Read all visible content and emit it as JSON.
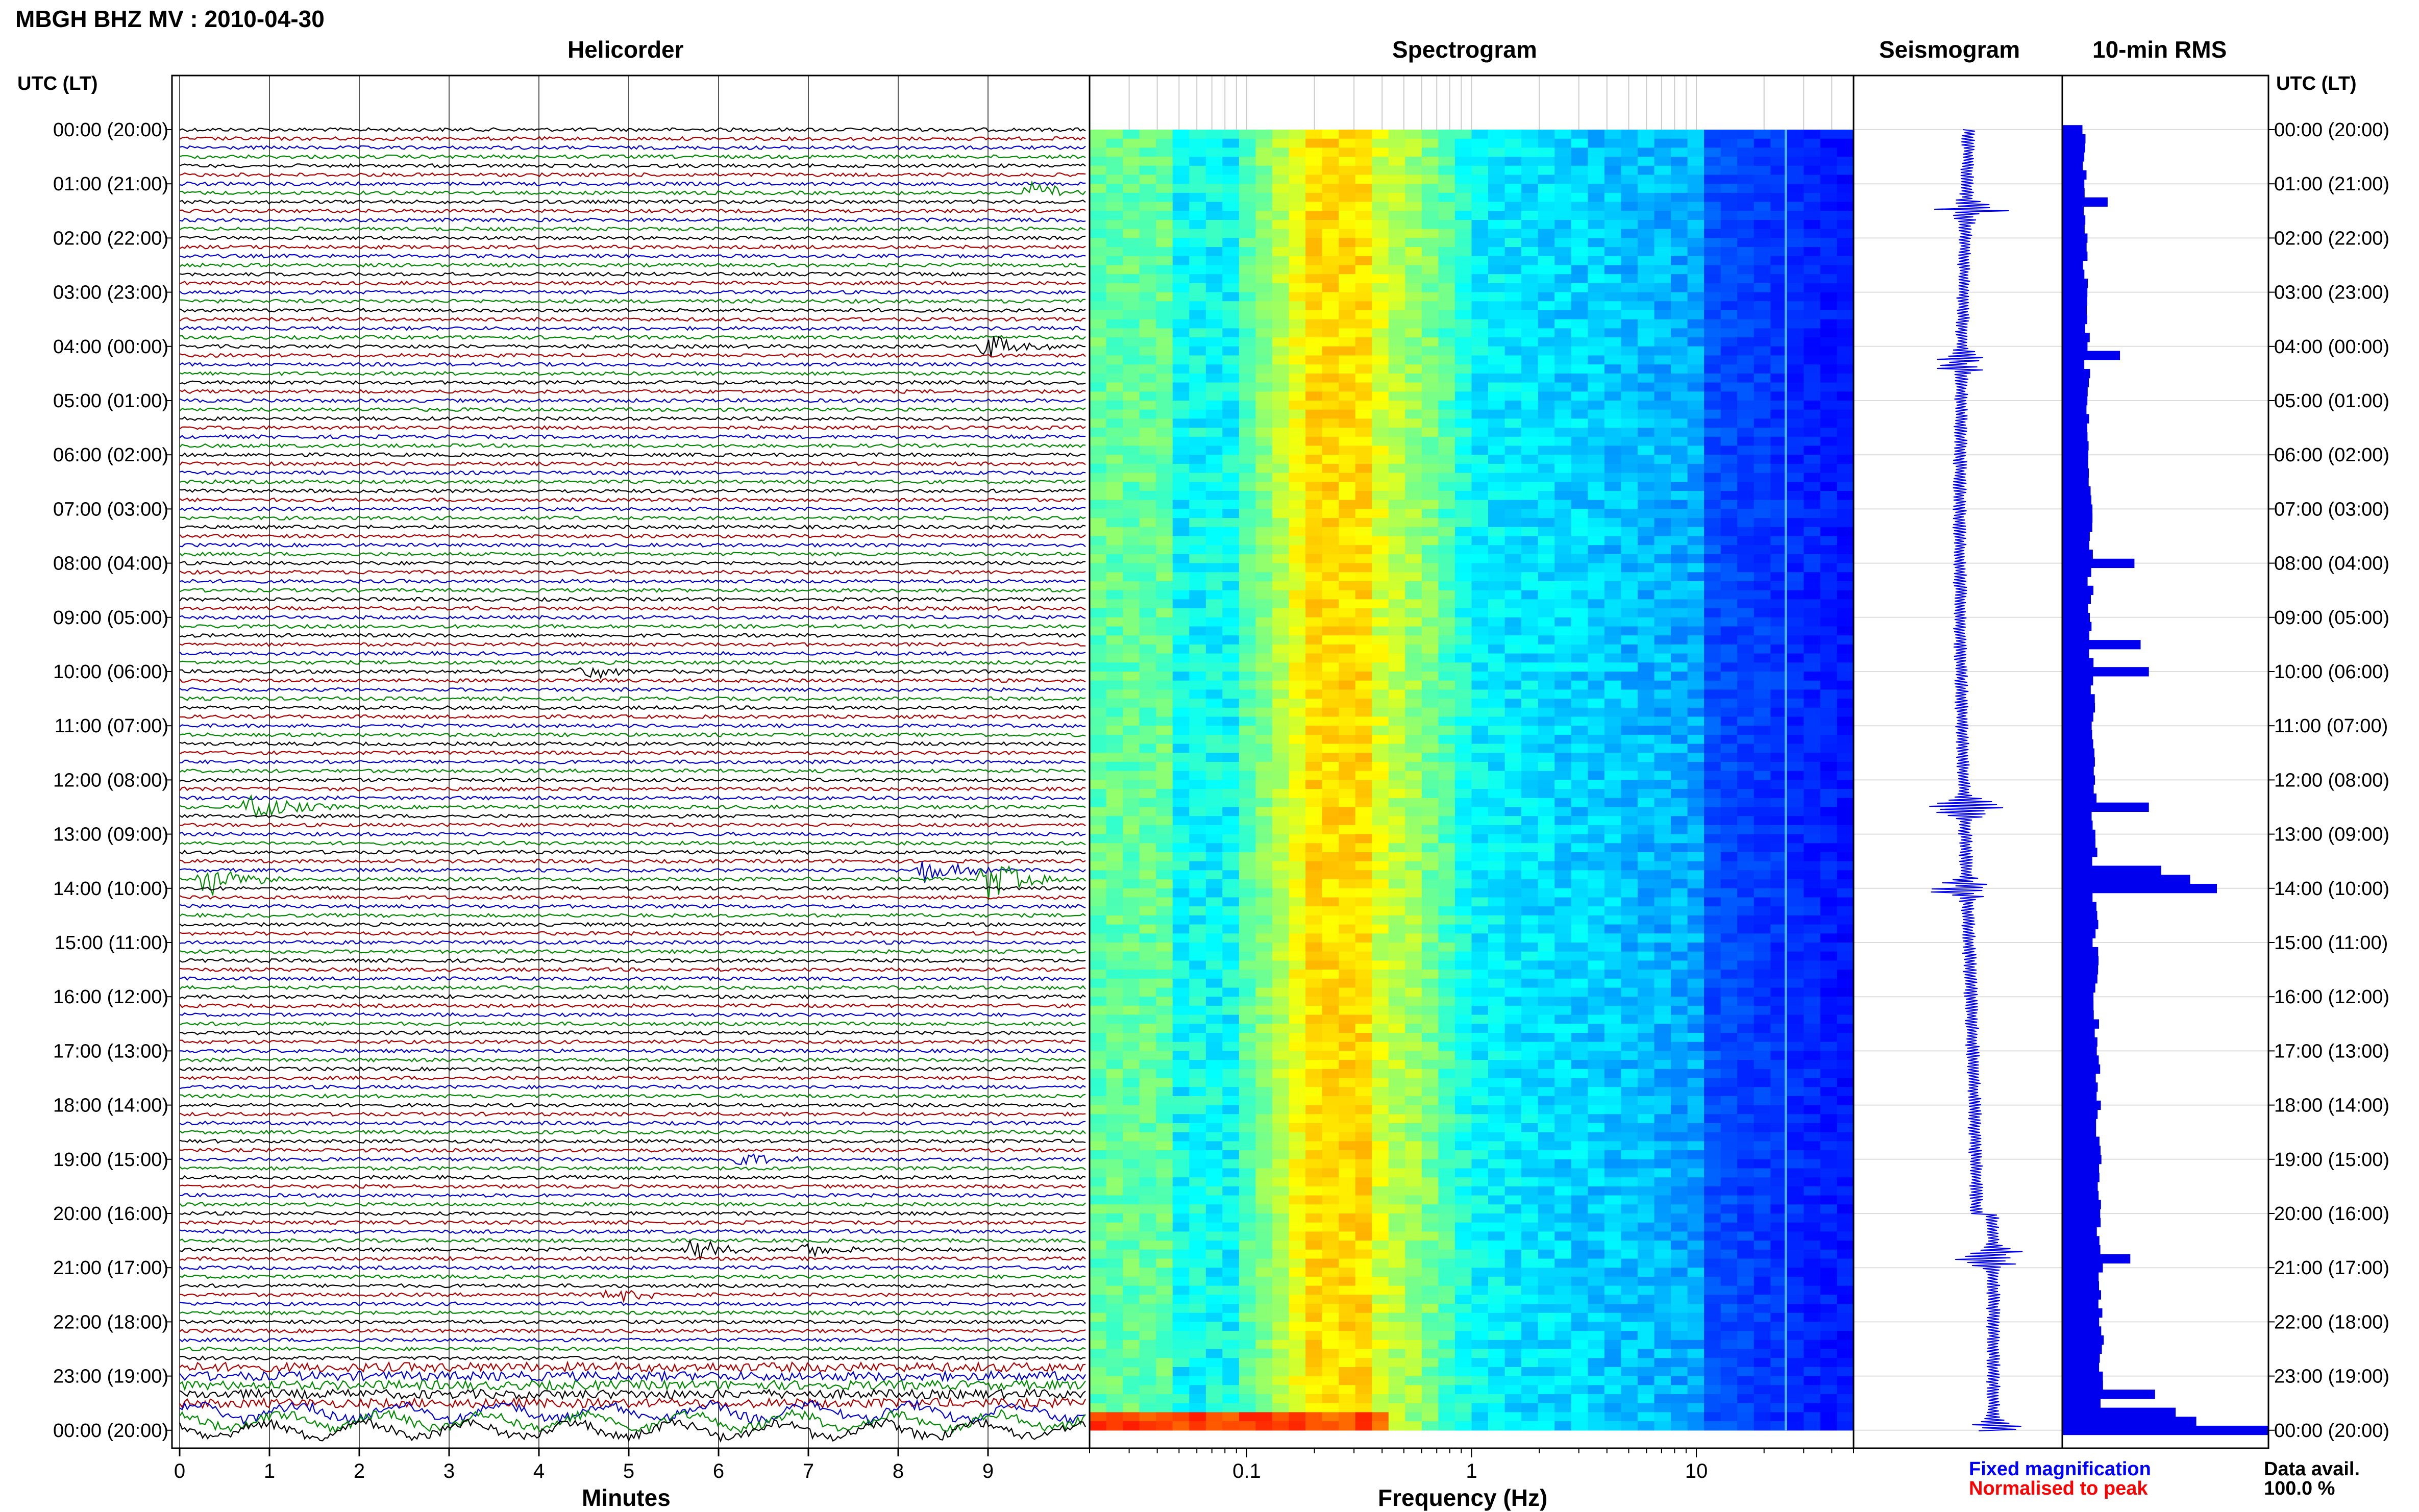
{
  "header": {
    "title": "MBGH BHZ MV : 2010-04-30",
    "time_label_left": "UTC (LT)",
    "time_label_right": "UTC (LT)"
  },
  "panels": {
    "helicorder": "Helicorder",
    "spectrogram": "Spectrogram",
    "seismogram": "Seismogram",
    "rms": "10-min RMS"
  },
  "footer": {
    "fixed_magnification": "Fixed magnification",
    "normalised_to_peak": "Normalised to peak",
    "data_avail_label": "Data avail.",
    "data_avail_value": "100.0 %"
  },
  "colors": {
    "trace_cycle": [
      "#000000",
      "#aa0000",
      "#0000cc",
      "#008800"
    ],
    "rms_bar": "#0000ee",
    "seismogram": "#0000ee",
    "fixed_magnification_text": "#0000ff",
    "normalised_text": "#ff0000"
  },
  "chart_data": [
    {
      "type": "line",
      "name": "helicorder",
      "title": "Helicorder",
      "xlabel": "Minutes",
      "ylabel": "UTC (LT)",
      "x_ticks": [
        "0",
        "1",
        "2",
        "3",
        "4",
        "5",
        "6",
        "7",
        "8",
        "9"
      ],
      "xlim": [
        0,
        10
      ],
      "row_labels": [
        "00:00 (20:00)",
        "01:00 (21:00)",
        "02:00 (22:00)",
        "03:00 (23:00)",
        "04:00 (00:00)",
        "05:00 (01:00)",
        "06:00 (02:00)",
        "07:00 (03:00)",
        "08:00 (04:00)",
        "09:00 (05:00)",
        "10:00 (06:00)",
        "11:00 (07:00)",
        "12:00 (08:00)",
        "13:00 (09:00)",
        "14:00 (10:00)",
        "15:00 (11:00)",
        "16:00 (12:00)",
        "17:00 (13:00)",
        "18:00 (14:00)",
        "19:00 (15:00)",
        "20:00 (16:00)",
        "21:00 (17:00)",
        "22:00 (18:00)",
        "23:00 (19:00)",
        "00:00 (20:00)"
      ],
      "traces_per_hour": 6,
      "trace_minutes": 10,
      "events": [
        {
          "hour": 1,
          "slot": 1,
          "minute": 9.5,
          "strength": 0.6,
          "color": "#000000"
        },
        {
          "hour": 4,
          "slot": 0,
          "minute": 9.0,
          "strength": 0.8,
          "color": "#aa0000"
        },
        {
          "hour": 10,
          "slot": 0,
          "minute": 4.5,
          "strength": 0.5,
          "color": "#000000"
        },
        {
          "hour": 12,
          "slot": 3,
          "minute": 0.8,
          "strength": 1.0,
          "color": "#008800"
        },
        {
          "hour": 13,
          "slot": 5,
          "minute": 0.3,
          "strength": 0.9,
          "color": "#008800"
        },
        {
          "hour": 13,
          "slot": 5,
          "minute": 9.0,
          "strength": 1.2,
          "color": "#008800"
        },
        {
          "hour": 13,
          "slot": 4,
          "minute": 8.3,
          "strength": 0.7,
          "color": "#0000cc"
        },
        {
          "hour": 19,
          "slot": 0,
          "minute": 6.2,
          "strength": 0.4,
          "color": "#000000"
        },
        {
          "hour": 20,
          "slot": 4,
          "minute": 5.7,
          "strength": 0.6,
          "color": "#000000"
        },
        {
          "hour": 20,
          "slot": 4,
          "minute": 7.0,
          "strength": 0.4,
          "color": "#000000"
        },
        {
          "hour": 21,
          "slot": 3,
          "minute": 4.8,
          "strength": 0.4,
          "color": "#0000cc"
        }
      ]
    },
    {
      "type": "heatmap",
      "name": "spectrogram",
      "title": "Spectrogram",
      "xlabel": "Frequency (Hz)",
      "x_scale": "log",
      "xlim": [
        0.02,
        50
      ],
      "x_ticks": [
        "0.1",
        "1",
        "10"
      ],
      "peak_band_hz": [
        0.18,
        0.35
      ],
      "persistent_line_hz": 25
    },
    {
      "type": "line",
      "name": "seismogram",
      "title": "Seismogram",
      "spikes_at_hour": [
        1.5,
        4.3,
        12.5,
        14.0,
        20.8,
        24.0
      ]
    },
    {
      "type": "bar",
      "name": "rms",
      "title": "10-min RMS",
      "notable_hours": [
        {
          "hour": 1.3,
          "value": 0.22
        },
        {
          "hour": 4.2,
          "value": 0.28
        },
        {
          "hour": 8.0,
          "value": 0.35
        },
        {
          "hour": 9.5,
          "value": 0.38
        },
        {
          "hour": 10.0,
          "value": 0.42
        },
        {
          "hour": 12.5,
          "value": 0.42
        },
        {
          "hour": 13.7,
          "value": 0.48
        },
        {
          "hour": 13.9,
          "value": 0.62
        },
        {
          "hour": 14.0,
          "value": 0.75
        },
        {
          "hour": 20.8,
          "value": 0.33
        },
        {
          "hour": 23.3,
          "value": 0.45
        },
        {
          "hour": 23.6,
          "value": 0.55
        },
        {
          "hour": 23.9,
          "value": 0.65
        },
        {
          "hour": 24.0,
          "value": 1.0
        }
      ]
    }
  ]
}
